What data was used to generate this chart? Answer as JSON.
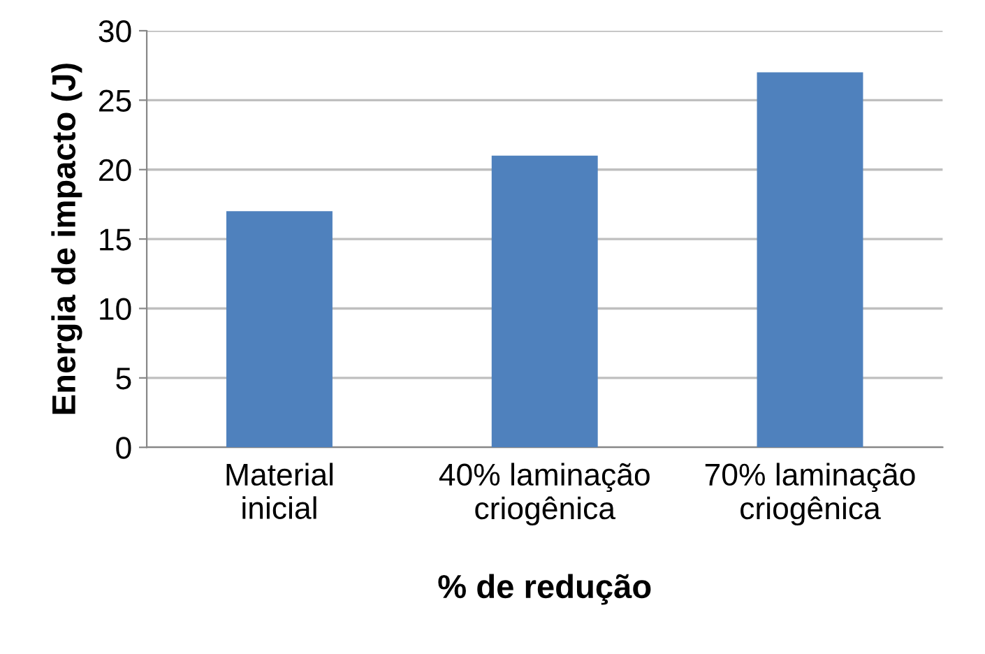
{
  "chart_data": {
    "type": "bar",
    "xlabel": "% de redução",
    "ylabel": "Energia de impacto (J)",
    "categories": [
      "Material\ninicial",
      "40% laminação\ncriogênica",
      "70% laminação\ncriogênica"
    ],
    "values": [
      17,
      21,
      27
    ],
    "color": "#4f81bd",
    "ylim": [
      0,
      30
    ],
    "yticks": [
      0,
      5,
      10,
      15,
      20,
      25,
      30
    ],
    "grid": "y",
    "legend": false
  }
}
